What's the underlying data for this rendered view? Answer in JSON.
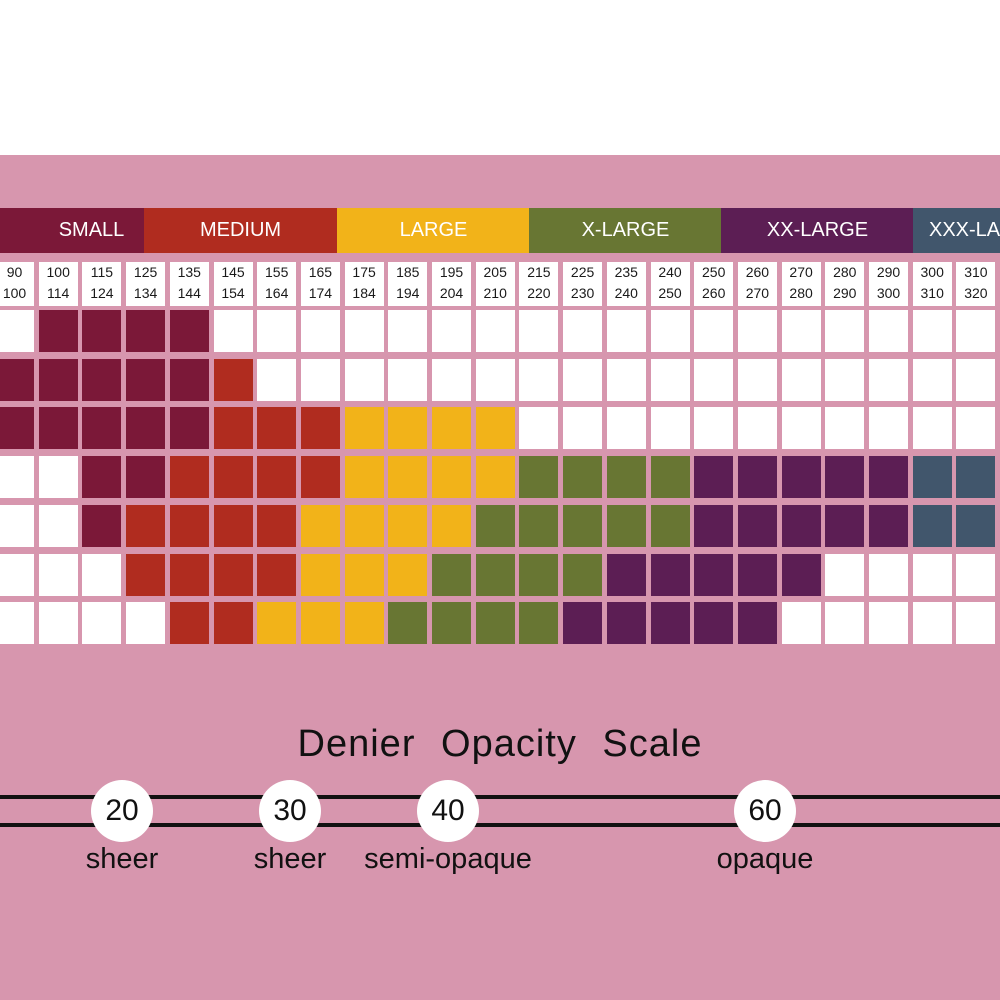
{
  "colors": {
    "background": "#d796ae",
    "small": "#7b1838",
    "medium": "#b02c1f",
    "large": "#f2b319",
    "x_large": "#687633",
    "xx_large": "#5c1e54",
    "xxx_large": "#41566c",
    "empty": "#ffffff"
  },
  "size_headers": [
    {
      "label": "SMALL",
      "color": "#7b1838"
    },
    {
      "label": "MEDIUM",
      "color": "#b02c1f"
    },
    {
      "label": "LARGE",
      "color": "#f2b319"
    },
    {
      "label": "X-LARGE",
      "color": "#687633"
    },
    {
      "label": "XX-LARGE",
      "color": "#5c1e54"
    },
    {
      "label": "XXX-LARGE",
      "color": "#41566c"
    }
  ],
  "weight_ranges": [
    {
      "top": "90",
      "bottom": "100"
    },
    {
      "top": "100",
      "bottom": "114"
    },
    {
      "top": "115",
      "bottom": "124"
    },
    {
      "top": "125",
      "bottom": "134"
    },
    {
      "top": "135",
      "bottom": "144"
    },
    {
      "top": "145",
      "bottom": "154"
    },
    {
      "top": "155",
      "bottom": "164"
    },
    {
      "top": "165",
      "bottom": "174"
    },
    {
      "top": "175",
      "bottom": "184"
    },
    {
      "top": "185",
      "bottom": "194"
    },
    {
      "top": "195",
      "bottom": "204"
    },
    {
      "top": "205",
      "bottom": "210"
    },
    {
      "top": "215",
      "bottom": "220"
    },
    {
      "top": "225",
      "bottom": "230"
    },
    {
      "top": "235",
      "bottom": "240"
    },
    {
      "top": "240",
      "bottom": "250"
    },
    {
      "top": "250",
      "bottom": "260"
    },
    {
      "top": "260",
      "bottom": "270"
    },
    {
      "top": "270",
      "bottom": "280"
    },
    {
      "top": "280",
      "bottom": "290"
    },
    {
      "top": "290",
      "bottom": "300"
    },
    {
      "top": "300",
      "bottom": "310"
    },
    {
      "top": "310",
      "bottom": "320"
    }
  ],
  "size_grid": [
    [
      "W",
      "S",
      "S",
      "S",
      "S",
      "W",
      "W",
      "W",
      "W",
      "W",
      "W",
      "W",
      "W",
      "W",
      "W",
      "W",
      "W",
      "W",
      "W",
      "W",
      "W",
      "W",
      "W"
    ],
    [
      "S",
      "S",
      "S",
      "S",
      "S",
      "M",
      "W",
      "W",
      "W",
      "W",
      "W",
      "W",
      "W",
      "W",
      "W",
      "W",
      "W",
      "W",
      "W",
      "W",
      "W",
      "W",
      "W"
    ],
    [
      "S",
      "S",
      "S",
      "S",
      "S",
      "M",
      "M",
      "M",
      "L",
      "L",
      "L",
      "L",
      "W",
      "W",
      "W",
      "W",
      "W",
      "W",
      "W",
      "W",
      "W",
      "W",
      "W"
    ],
    [
      "W",
      "W",
      "S",
      "S",
      "M",
      "M",
      "M",
      "M",
      "L",
      "L",
      "L",
      "L",
      "XL",
      "XL",
      "XL",
      "XL",
      "XXL",
      "XXL",
      "XXL",
      "XXL",
      "XXL",
      "XXXL",
      "XXXL"
    ],
    [
      "W",
      "W",
      "S",
      "M",
      "M",
      "M",
      "M",
      "L",
      "L",
      "L",
      "L",
      "XL",
      "XL",
      "XL",
      "XL",
      "XL",
      "XXL",
      "XXL",
      "XXL",
      "XXL",
      "XXL",
      "XXXL",
      "XXXL"
    ],
    [
      "W",
      "W",
      "W",
      "M",
      "M",
      "M",
      "M",
      "L",
      "L",
      "L",
      "XL",
      "XL",
      "XL",
      "XL",
      "XXL",
      "XXL",
      "XXL",
      "XXL",
      "XXL",
      "W",
      "W",
      "W",
      "W"
    ],
    [
      "W",
      "W",
      "W",
      "W",
      "M",
      "M",
      "L",
      "L",
      "L",
      "XL",
      "XL",
      "XL",
      "XL",
      "XXL",
      "XXL",
      "XXL",
      "XXL",
      "XXL",
      "W",
      "W",
      "W",
      "W",
      "W"
    ]
  ],
  "scale": {
    "title": "Denier Opacity Scale",
    "points": [
      {
        "value": "20",
        "label": "sheer"
      },
      {
        "value": "30",
        "label": "sheer"
      },
      {
        "value": "40",
        "label": "semi-opaque"
      },
      {
        "value": "60",
        "label": "opaque"
      }
    ]
  }
}
